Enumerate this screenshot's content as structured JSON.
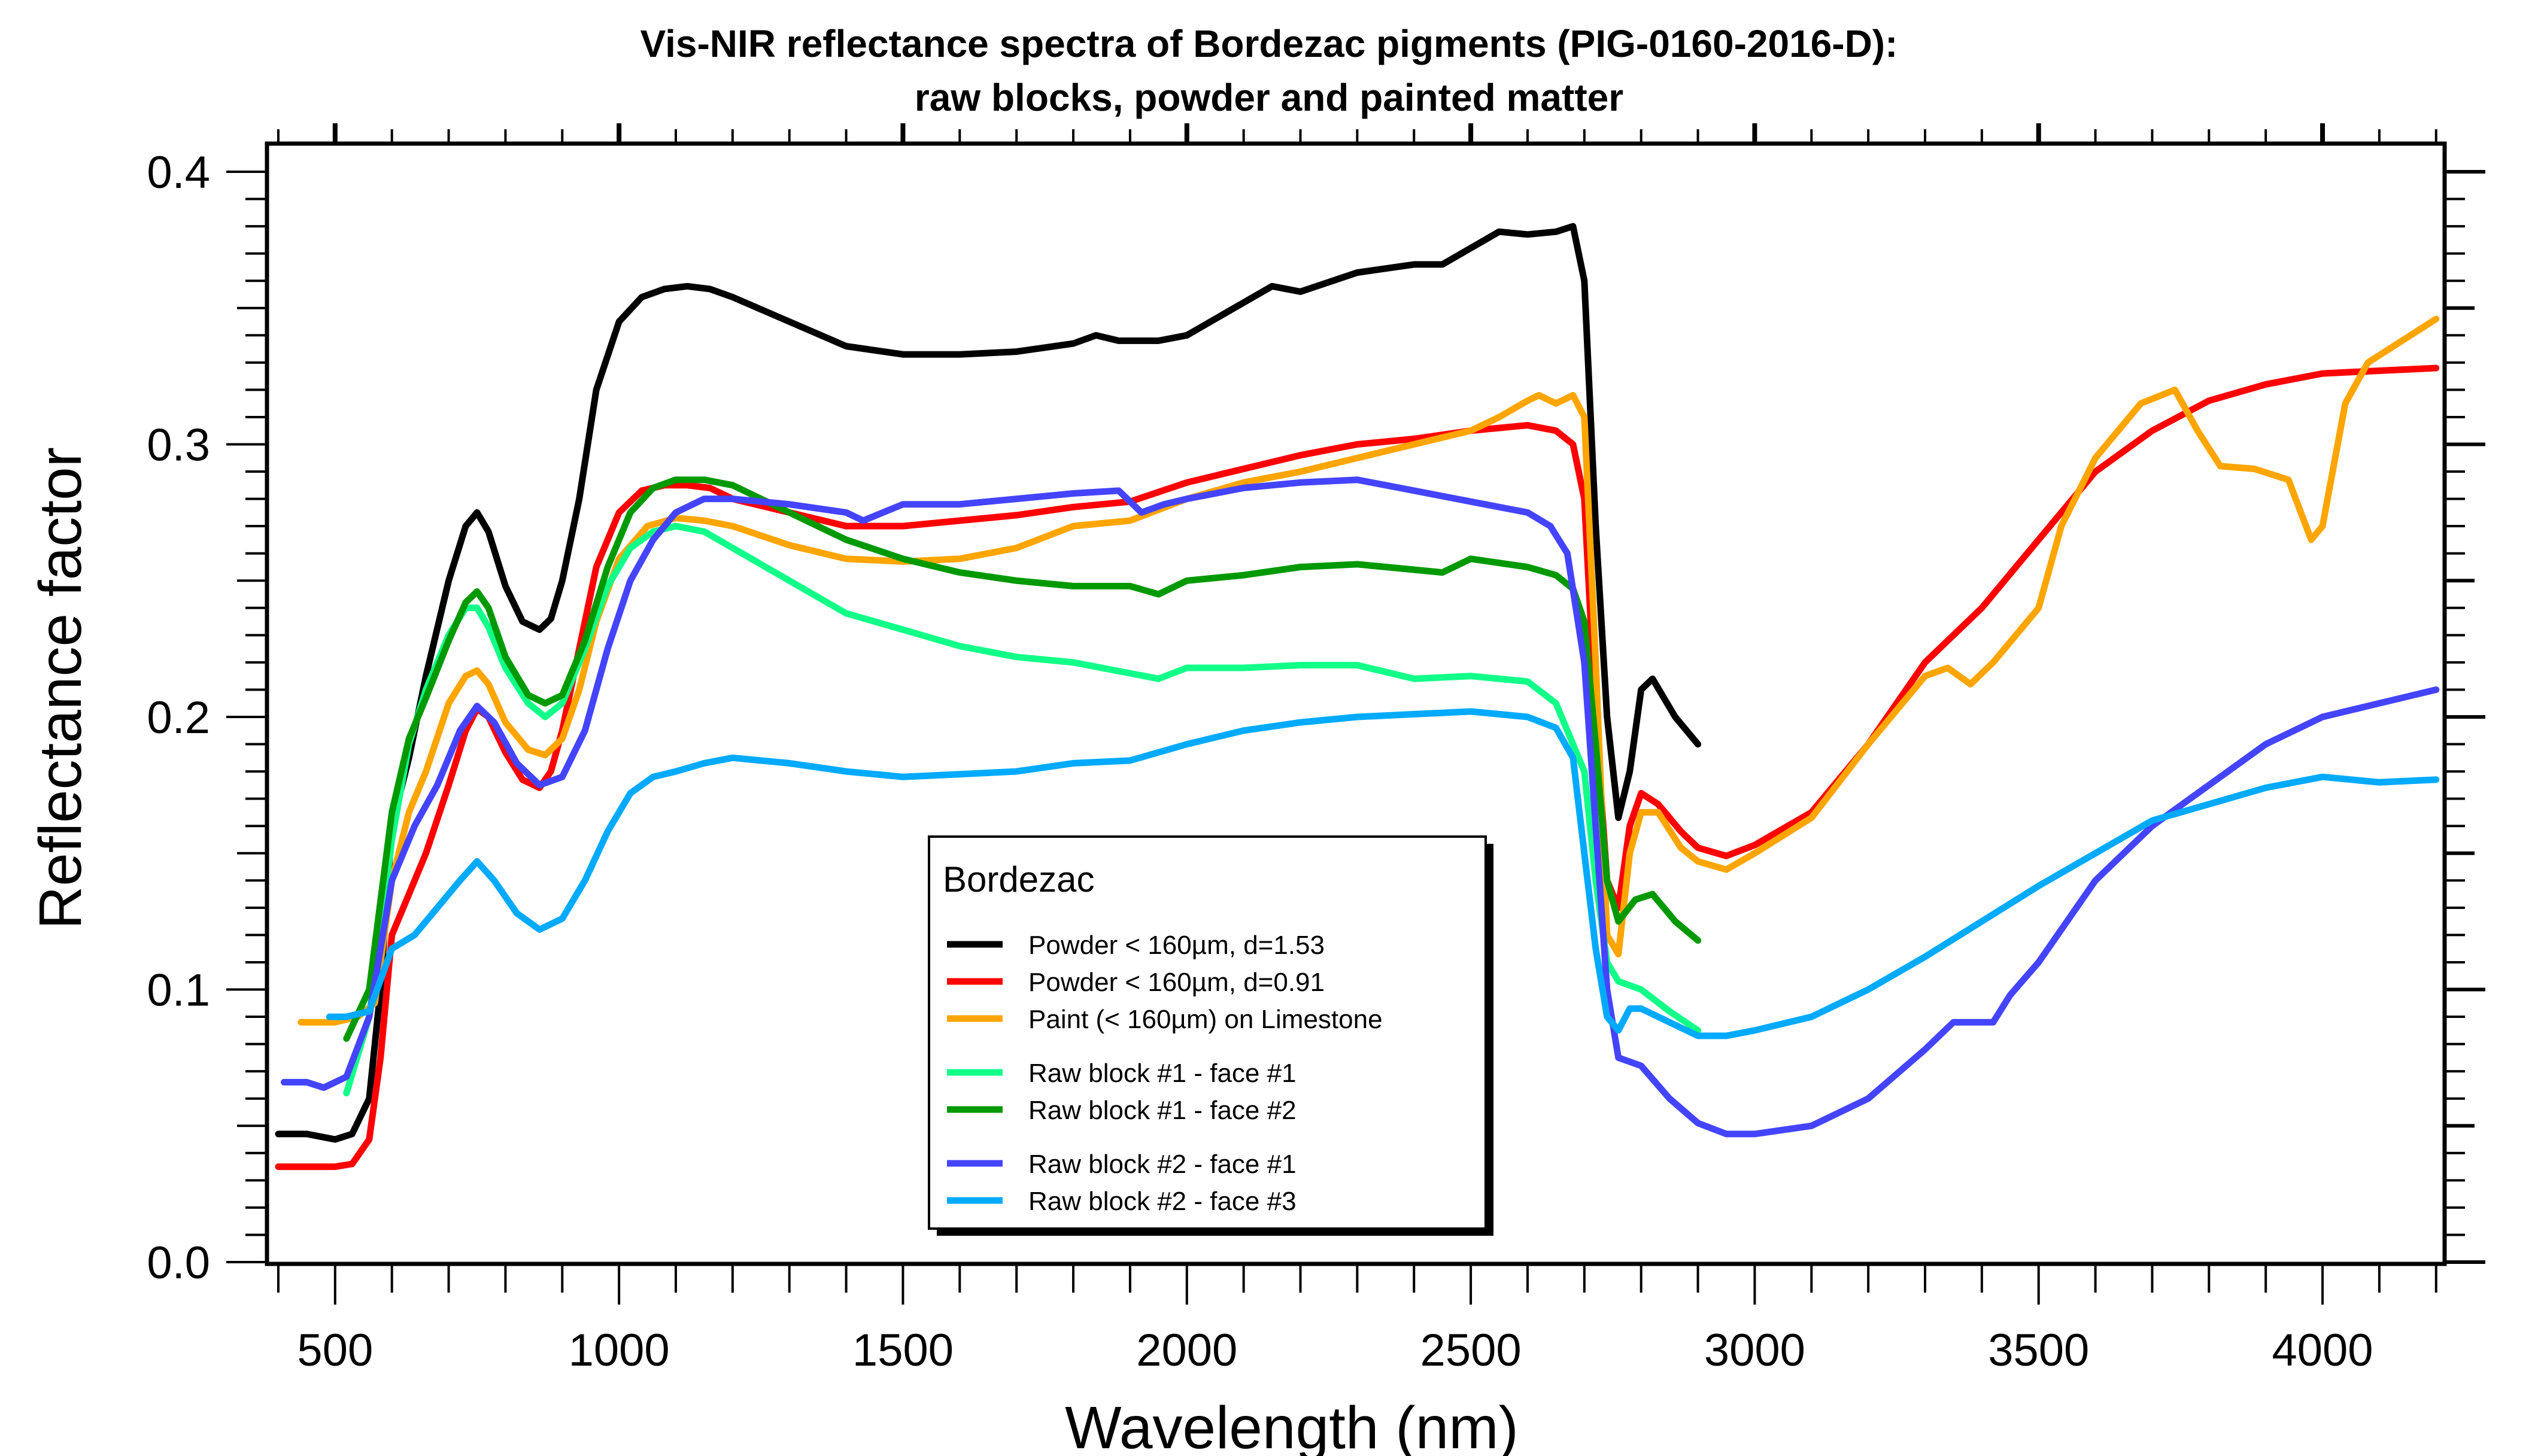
{
  "chart_data": {
    "type": "line",
    "title": "Vis-NIR reflectance spectra of Bordezac pigments (PIG-0160-2016-D):",
    "subtitle": "raw blocks, powder and painted matter",
    "xlabel": "Wavelength (nm)",
    "ylabel": "Reflectance factor",
    "xlim": [
      380,
      4215
    ],
    "ylim": [
      0.0,
      0.4
    ],
    "xticks": [
      500,
      1000,
      1500,
      2000,
      2500,
      3000,
      3500,
      4000
    ],
    "xtick_labels": [
      "500",
      "1000",
      "1500",
      "2000",
      "2500",
      "3000",
      "3500",
      "4000"
    ],
    "yticks": [
      0.0,
      0.1,
      0.2,
      0.3,
      0.4
    ],
    "ytick_labels": [
      "0.0",
      "0.1",
      "0.2",
      "0.3",
      "0.4"
    ],
    "grid": false,
    "legend": {
      "title": "Bordezac",
      "placement": "center-bottom",
      "groups": [
        [
          0,
          1,
          2
        ],
        [
          3,
          4
        ],
        [
          5,
          6
        ]
      ]
    },
    "series": [
      {
        "name": "Powder < 160µm, d=1.53",
        "color": "#000000",
        "x": [
          400,
          450,
          500,
          530,
          560,
          580,
          600,
          630,
          660,
          700,
          730,
          750,
          770,
          800,
          830,
          860,
          880,
          900,
          930,
          960,
          1000,
          1040,
          1080,
          1120,
          1160,
          1200,
          1300,
          1400,
          1500,
          1600,
          1700,
          1800,
          1840,
          1880,
          1950,
          2000,
          2100,
          2150,
          2200,
          2300,
          2400,
          2450,
          2500,
          2550,
          2600,
          2650,
          2680,
          2700,
          2720,
          2740,
          2760,
          2780,
          2800,
          2820,
          2860,
          2900
        ],
        "y": [
          0.047,
          0.047,
          0.045,
          0.047,
          0.06,
          0.1,
          0.16,
          0.185,
          0.215,
          0.25,
          0.27,
          0.275,
          0.268,
          0.248,
          0.235,
          0.232,
          0.236,
          0.25,
          0.28,
          0.32,
          0.345,
          0.354,
          0.357,
          0.358,
          0.357,
          0.354,
          0.345,
          0.336,
          0.333,
          0.333,
          0.334,
          0.337,
          0.34,
          0.338,
          0.338,
          0.34,
          0.352,
          0.358,
          0.356,
          0.363,
          0.366,
          0.366,
          0.372,
          0.378,
          0.377,
          0.378,
          0.38,
          0.36,
          0.27,
          0.2,
          0.163,
          0.18,
          0.21,
          0.214,
          0.2,
          0.19
        ]
      },
      {
        "name": "Powder < 160µm, d=0.91",
        "color": "#ff0000",
        "x": [
          400,
          450,
          500,
          530,
          560,
          580,
          600,
          630,
          660,
          700,
          730,
          750,
          770,
          800,
          830,
          860,
          880,
          900,
          930,
          960,
          1000,
          1040,
          1080,
          1120,
          1160,
          1200,
          1300,
          1400,
          1500,
          1600,
          1700,
          1800,
          1900,
          2000,
          2100,
          2200,
          2300,
          2400,
          2500,
          2600,
          2650,
          2680,
          2700,
          2720,
          2740,
          2760,
          2780,
          2800,
          2830,
          2870,
          2900,
          2950,
          3000,
          3100,
          3200,
          3300,
          3400,
          3500,
          3600,
          3700,
          3800,
          3900,
          4000,
          4100,
          4200
        ],
        "y": [
          0.035,
          0.035,
          0.035,
          0.036,
          0.045,
          0.075,
          0.12,
          0.135,
          0.15,
          0.175,
          0.195,
          0.203,
          0.2,
          0.187,
          0.177,
          0.174,
          0.18,
          0.195,
          0.225,
          0.255,
          0.275,
          0.283,
          0.285,
          0.285,
          0.284,
          0.28,
          0.275,
          0.27,
          0.27,
          0.272,
          0.274,
          0.277,
          0.279,
          0.286,
          0.291,
          0.296,
          0.3,
          0.302,
          0.305,
          0.307,
          0.305,
          0.3,
          0.28,
          0.2,
          0.14,
          0.13,
          0.16,
          0.172,
          0.168,
          0.158,
          0.152,
          0.149,
          0.153,
          0.165,
          0.19,
          0.22,
          0.24,
          0.265,
          0.29,
          0.305,
          0.316,
          0.322,
          0.326,
          0.327,
          0.328
        ]
      },
      {
        "name": "Paint (< 160µm) on Limestone",
        "color": "#ffa500",
        "x": [
          440,
          480,
          500,
          540,
          570,
          600,
          630,
          660,
          700,
          730,
          750,
          770,
          800,
          840,
          870,
          900,
          930,
          960,
          1000,
          1050,
          1100,
          1150,
          1200,
          1300,
          1400,
          1500,
          1600,
          1700,
          1800,
          1900,
          2000,
          2100,
          2200,
          2300,
          2400,
          2500,
          2550,
          2600,
          2620,
          2650,
          2680,
          2700,
          2720,
          2740,
          2760,
          2780,
          2800,
          2830,
          2870,
          2900,
          2950,
          3000,
          3100,
          3200,
          3300,
          3340,
          3380,
          3420,
          3460,
          3500,
          3540,
          3600,
          3680,
          3740,
          3780,
          3820,
          3880,
          3940,
          3980,
          4000,
          4040,
          4080,
          4140,
          4200
        ],
        "y": [
          0.088,
          0.088,
          0.088,
          0.09,
          0.095,
          0.14,
          0.165,
          0.18,
          0.205,
          0.215,
          0.217,
          0.212,
          0.198,
          0.188,
          0.186,
          0.192,
          0.21,
          0.235,
          0.258,
          0.27,
          0.273,
          0.272,
          0.27,
          0.263,
          0.258,
          0.257,
          0.258,
          0.262,
          0.27,
          0.272,
          0.28,
          0.286,
          0.29,
          0.295,
          0.3,
          0.305,
          0.31,
          0.316,
          0.318,
          0.315,
          0.318,
          0.31,
          0.22,
          0.12,
          0.113,
          0.15,
          0.165,
          0.165,
          0.152,
          0.147,
          0.144,
          0.15,
          0.163,
          0.19,
          0.215,
          0.218,
          0.212,
          0.22,
          0.23,
          0.24,
          0.27,
          0.295,
          0.315,
          0.32,
          0.305,
          0.292,
          0.291,
          0.287,
          0.265,
          0.27,
          0.315,
          0.33,
          0.338,
          0.346
        ]
      },
      {
        "name": "Raw block #1 - face #1",
        "color": "#11ff88",
        "x": [
          520,
          560,
          600,
          630,
          660,
          700,
          730,
          750,
          770,
          800,
          840,
          870,
          900,
          940,
          980,
          1020,
          1060,
          1100,
          1150,
          1200,
          1300,
          1400,
          1500,
          1600,
          1700,
          1800,
          1900,
          1950,
          2000,
          2100,
          2200,
          2300,
          2400,
          2500,
          2600,
          2650,
          2700,
          2720,
          2740,
          2760,
          2800,
          2850,
          2900
        ],
        "y": [
          0.062,
          0.09,
          0.155,
          0.19,
          0.21,
          0.23,
          0.24,
          0.24,
          0.233,
          0.218,
          0.205,
          0.2,
          0.205,
          0.225,
          0.248,
          0.262,
          0.268,
          0.27,
          0.268,
          0.262,
          0.25,
          0.238,
          0.232,
          0.226,
          0.222,
          0.22,
          0.216,
          0.214,
          0.218,
          0.218,
          0.219,
          0.219,
          0.214,
          0.215,
          0.213,
          0.205,
          0.18,
          0.14,
          0.11,
          0.103,
          0.1,
          0.092,
          0.085
        ]
      },
      {
        "name": "Raw block #1 - face #2",
        "color": "#009900",
        "x": [
          520,
          560,
          600,
          630,
          660,
          700,
          730,
          750,
          770,
          800,
          840,
          870,
          900,
          940,
          980,
          1020,
          1060,
          1100,
          1150,
          1200,
          1300,
          1400,
          1500,
          1600,
          1700,
          1800,
          1900,
          1950,
          2000,
          2100,
          2200,
          2300,
          2400,
          2450,
          2500,
          2600,
          2650,
          2680,
          2700,
          2720,
          2740,
          2760,
          2790,
          2820,
          2860,
          2900
        ],
        "y": [
          0.082,
          0.1,
          0.165,
          0.192,
          0.207,
          0.228,
          0.242,
          0.246,
          0.24,
          0.222,
          0.208,
          0.205,
          0.208,
          0.228,
          0.255,
          0.275,
          0.284,
          0.287,
          0.287,
          0.285,
          0.275,
          0.265,
          0.258,
          0.253,
          0.25,
          0.248,
          0.248,
          0.245,
          0.25,
          0.252,
          0.255,
          0.256,
          0.254,
          0.253,
          0.258,
          0.255,
          0.252,
          0.247,
          0.235,
          0.19,
          0.14,
          0.125,
          0.133,
          0.135,
          0.125,
          0.118
        ]
      },
      {
        "name": "Raw block #2 - face #1",
        "color": "#4444ff",
        "x": [
          410,
          450,
          480,
          520,
          560,
          600,
          640,
          680,
          720,
          750,
          780,
          820,
          860,
          900,
          940,
          980,
          1020,
          1060,
          1100,
          1150,
          1200,
          1300,
          1400,
          1430,
          1500,
          1600,
          1700,
          1800,
          1880,
          1920,
          1960,
          2000,
          2100,
          2200,
          2300,
          2400,
          2500,
          2600,
          2640,
          2670,
          2700,
          2720,
          2740,
          2760,
          2800,
          2850,
          2900,
          2950,
          3000,
          3100,
          3200,
          3300,
          3350,
          3400,
          3420,
          3450,
          3500,
          3550,
          3600,
          3700,
          3800,
          3900,
          4000,
          4100,
          4200
        ],
        "y": [
          0.066,
          0.066,
          0.064,
          0.068,
          0.09,
          0.14,
          0.16,
          0.175,
          0.195,
          0.204,
          0.198,
          0.183,
          0.175,
          0.178,
          0.195,
          0.225,
          0.25,
          0.265,
          0.275,
          0.28,
          0.28,
          0.278,
          0.275,
          0.272,
          0.278,
          0.278,
          0.28,
          0.282,
          0.283,
          0.275,
          0.278,
          0.28,
          0.284,
          0.286,
          0.287,
          0.283,
          0.279,
          0.275,
          0.27,
          0.26,
          0.22,
          0.16,
          0.1,
          0.075,
          0.072,
          0.06,
          0.051,
          0.047,
          0.047,
          0.05,
          0.06,
          0.078,
          0.088,
          0.088,
          0.088,
          0.098,
          0.11,
          0.125,
          0.14,
          0.16,
          0.175,
          0.19,
          0.2,
          0.205,
          0.21
        ]
      },
      {
        "name": "Raw block #2 - face #3",
        "color": "#00aaff",
        "x": [
          490,
          520,
          560,
          600,
          640,
          680,
          720,
          750,
          780,
          820,
          860,
          900,
          940,
          980,
          1020,
          1060,
          1100,
          1150,
          1200,
          1300,
          1400,
          1500,
          1600,
          1700,
          1800,
          1900,
          2000,
          2100,
          2200,
          2300,
          2400,
          2500,
          2600,
          2650,
          2680,
          2700,
          2720,
          2740,
          2760,
          2780,
          2800,
          2850,
          2900,
          2950,
          3000,
          3100,
          3200,
          3300,
          3400,
          3500,
          3600,
          3700,
          3800,
          3900,
          4000,
          4100,
          4200
        ],
        "y": [
          0.09,
          0.09,
          0.092,
          0.115,
          0.12,
          0.13,
          0.14,
          0.147,
          0.14,
          0.128,
          0.122,
          0.126,
          0.14,
          0.158,
          0.172,
          0.178,
          0.18,
          0.183,
          0.185,
          0.183,
          0.18,
          0.178,
          0.179,
          0.18,
          0.183,
          0.184,
          0.19,
          0.195,
          0.198,
          0.2,
          0.201,
          0.202,
          0.2,
          0.196,
          0.185,
          0.15,
          0.115,
          0.09,
          0.085,
          0.093,
          0.093,
          0.088,
          0.083,
          0.083,
          0.085,
          0.09,
          0.1,
          0.112,
          0.125,
          0.138,
          0.15,
          0.162,
          0.168,
          0.174,
          0.178,
          0.176,
          0.177
        ]
      }
    ]
  }
}
